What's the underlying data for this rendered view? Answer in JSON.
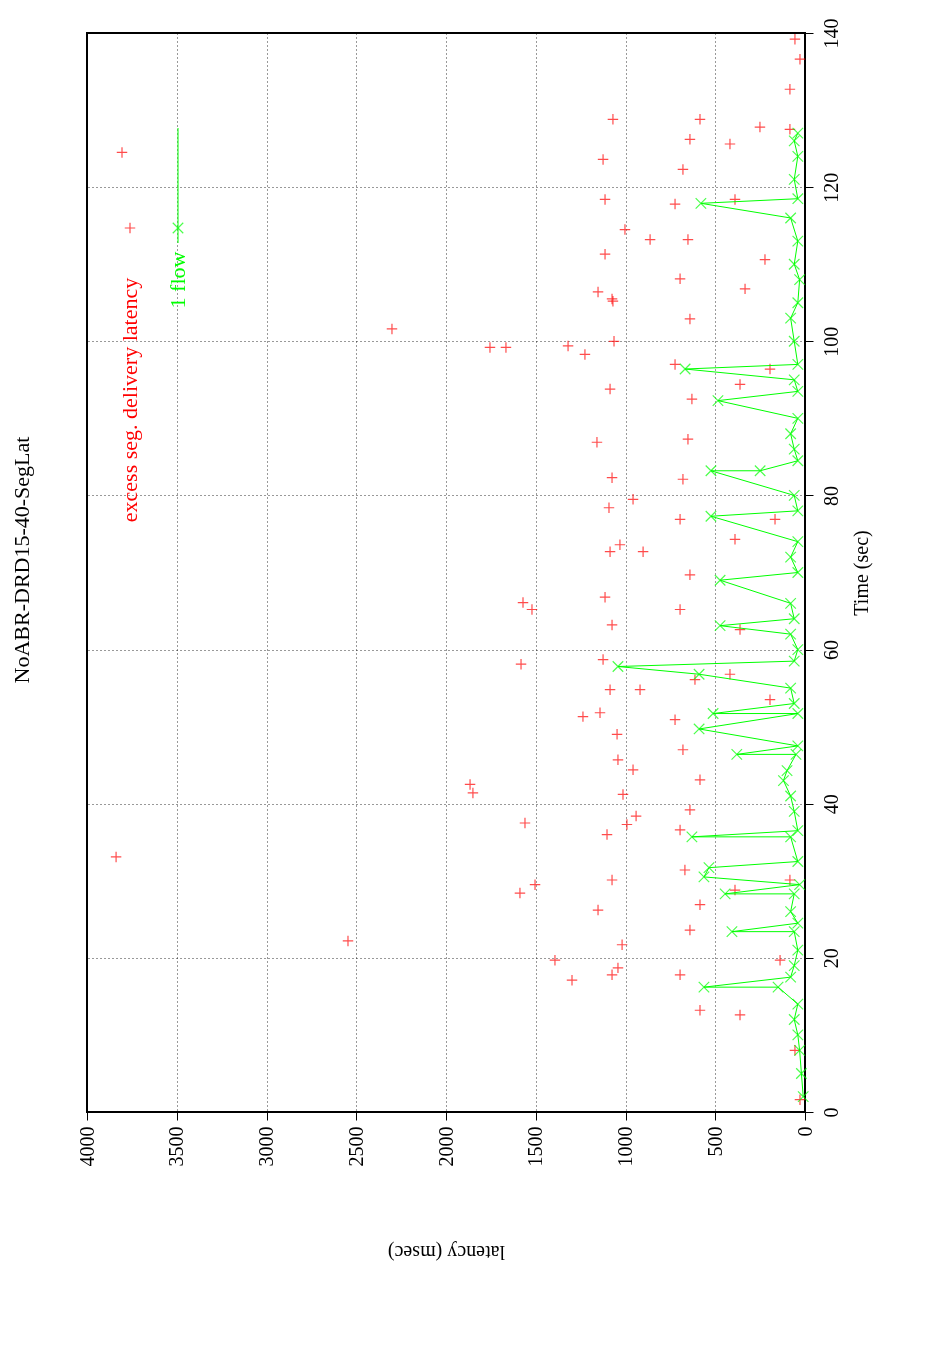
{
  "chart_data": {
    "type": "scatter",
    "title": "NoABR-DRD15-40-SegLat",
    "xlabel": "latency (msec)",
    "ylabel": "Time (sec)",
    "xlim": [
      4000,
      0
    ],
    "xticks": [
      4000,
      3500,
      3000,
      2500,
      2000,
      1500,
      1000,
      500,
      0
    ],
    "ylim": [
      0,
      140
    ],
    "yticks": [
      0,
      20,
      40,
      60,
      80,
      100,
      120,
      140
    ],
    "grid": true,
    "legend": "top left",
    "marker": "cross",
    "series": [
      {
        "name": "excess seg. delivery latency",
        "color": "#ff0000",
        "x": [
          3838,
          3805,
          2546,
          2301,
          1393,
          1755,
          1666,
          1866,
          1850,
          1588,
          1504,
          1560,
          1571,
          1521,
          1582,
          1320,
          1226,
          1153,
          1070,
          1237,
          1142,
          1047,
          941,
          992,
          1019,
          1042,
          1075,
          1153,
          1075,
          1103,
          1014,
          1042,
          1086,
          1125,
          1075,
          1114,
          1086,
          1031,
          1092,
          1075,
          1159,
          1086,
          1064,
          1075,
          1114,
          1114,
          1125,
          1070,
          1298,
          919,
          958,
          902,
          958,
          863,
          1003,
          696,
          585,
          641,
          585,
          669,
          696,
          641,
          585,
          680,
          724,
          613,
          696,
          641,
          696,
          680,
          652,
          630,
          724,
          641,
          696,
          652,
          724,
          680,
          641,
          585,
          418,
          390,
          334,
          362,
          390,
          362,
          390,
          362,
          418,
          28,
          56,
          139,
          84,
          195,
          167,
          195,
          223,
          84,
          28,
          56,
          251,
          84
        ],
        "values": [
          33.1,
          124.5,
          22.2,
          101.6,
          19.7,
          99.2,
          99.2,
          42.5,
          41.4,
          28.4,
          29.5,
          37.5,
          66.1,
          65.2,
          58.1,
          99.4,
          98.3,
          106.4,
          105.2,
          51.3,
          51.8,
          49,
          38.4,
          37.3,
          21.7,
          18.7,
          17.8,
          26.2,
          30.1,
          36,
          41.2,
          45.7,
          54.8,
          58.7,
          63.2,
          66.8,
          72.7,
          73.6,
          78.4,
          82.3,
          86.9,
          93.8,
          100,
          105.5,
          111.3,
          118.4,
          123.6,
          128.8,
          17.1,
          54.8,
          44.4,
          72.7,
          79.5,
          113.2,
          114.5,
          17.8,
          13.2,
          23.6,
          26.9,
          31.4,
          36.6,
          39.2,
          43.1,
          47,
          50.9,
          56.1,
          65.2,
          69.7,
          76.9,
          82.1,
          87.3,
          92.5,
          97,
          102.9,
          108.1,
          113.2,
          117.8,
          122.3,
          126.2,
          128.8,
          125.6,
          118.4,
          106.8,
          94.4,
          74.3,
          62.6,
          28.8,
          12.6,
          56.8,
          1.6,
          8,
          19.7,
          30.1,
          53.5,
          76.9,
          96.4,
          110.6,
          127.5,
          136.6,
          139.2,
          127.8,
          132.7
        ]
      },
      {
        "name": "1 flow",
        "color": "#00ff00",
        "type": "line",
        "x": [
          10,
          20,
          30,
          40,
          60,
          40,
          150,
          563,
          80,
          60,
          40,
          60,
          407,
          40,
          80,
          60,
          445,
          30,
          563,
          535,
          40,
          80,
          630,
          40,
          60,
          80,
          120,
          100,
          50,
          380,
          40,
          590,
          40,
          512,
          60,
          80,
          590,
          1042,
          60,
          40,
          80,
          473,
          60,
          80,
          473,
          40,
          80,
          40,
          524,
          40,
          60,
          524,
          250,
          40,
          60,
          80,
          40,
          485,
          40,
          60,
          668,
          40,
          60,
          80,
          40,
          30,
          60,
          40,
          80,
          580,
          40,
          60,
          40,
          60,
          40
        ],
        "values": [
          2,
          5,
          8,
          10,
          12,
          14,
          16.2,
          16.2,
          17.5,
          19,
          21,
          23.4,
          23.4,
          24.5,
          26,
          28.3,
          28.3,
          29.5,
          30.5,
          31.7,
          32.5,
          35.7,
          35.7,
          36.5,
          39,
          41,
          43,
          44.3,
          46.4,
          46.4,
          47.5,
          49.7,
          51.7,
          51.7,
          53,
          55,
          56.8,
          57.8,
          58.5,
          60,
          62,
          63.1,
          64,
          66,
          69,
          70,
          72,
          74,
          77.3,
          78,
          80,
          83.2,
          83.2,
          84.5,
          86,
          88,
          90,
          92.3,
          93.5,
          95,
          96.4,
          97,
          100,
          103,
          105,
          108,
          110,
          113,
          116,
          117.9,
          118.5,
          121,
          124,
          126,
          127
        ]
      }
    ]
  }
}
